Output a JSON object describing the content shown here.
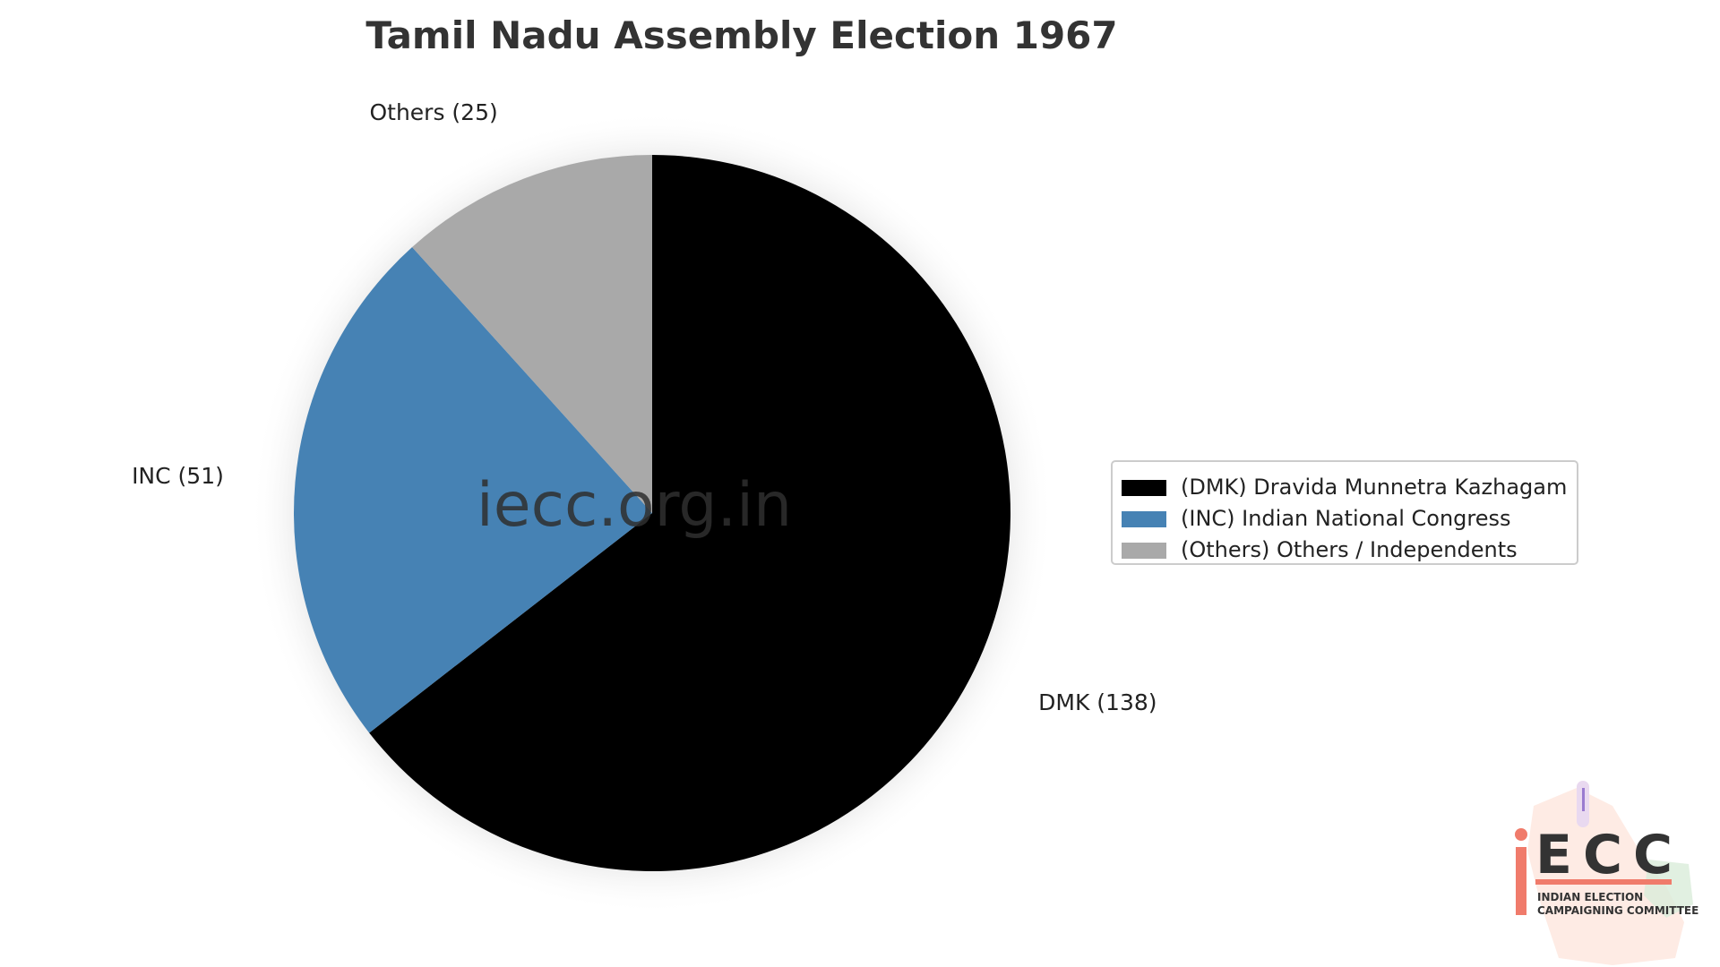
{
  "chart_data": {
    "type": "pie",
    "title": "Tamil Nadu Assembly Election 1967",
    "slices": [
      {
        "key": "DMK",
        "label": "DMK (138)",
        "value": 138,
        "color": "#000000",
        "legend": "(DMK) Dravida Munnetra Kazhagam"
      },
      {
        "key": "INC",
        "label": "INC (51)",
        "value": 51,
        "color": "#4682b4",
        "legend": "(INC) Indian National Congress"
      },
      {
        "key": "Others",
        "label": "Others (25)",
        "value": 25,
        "color": "#a9a9a9",
        "legend": "(Others) Others / Independents"
      }
    ],
    "start_angle_deg": 90,
    "direction": "clockwise",
    "legend_placement": "right"
  },
  "watermark": "iecc.org.in",
  "logo": {
    "letters": "ECC",
    "line1": "INDIAN ELECTION",
    "line2": "CAMPAIGNING COMMITTEE",
    "accent_color": "#f07b6b"
  }
}
